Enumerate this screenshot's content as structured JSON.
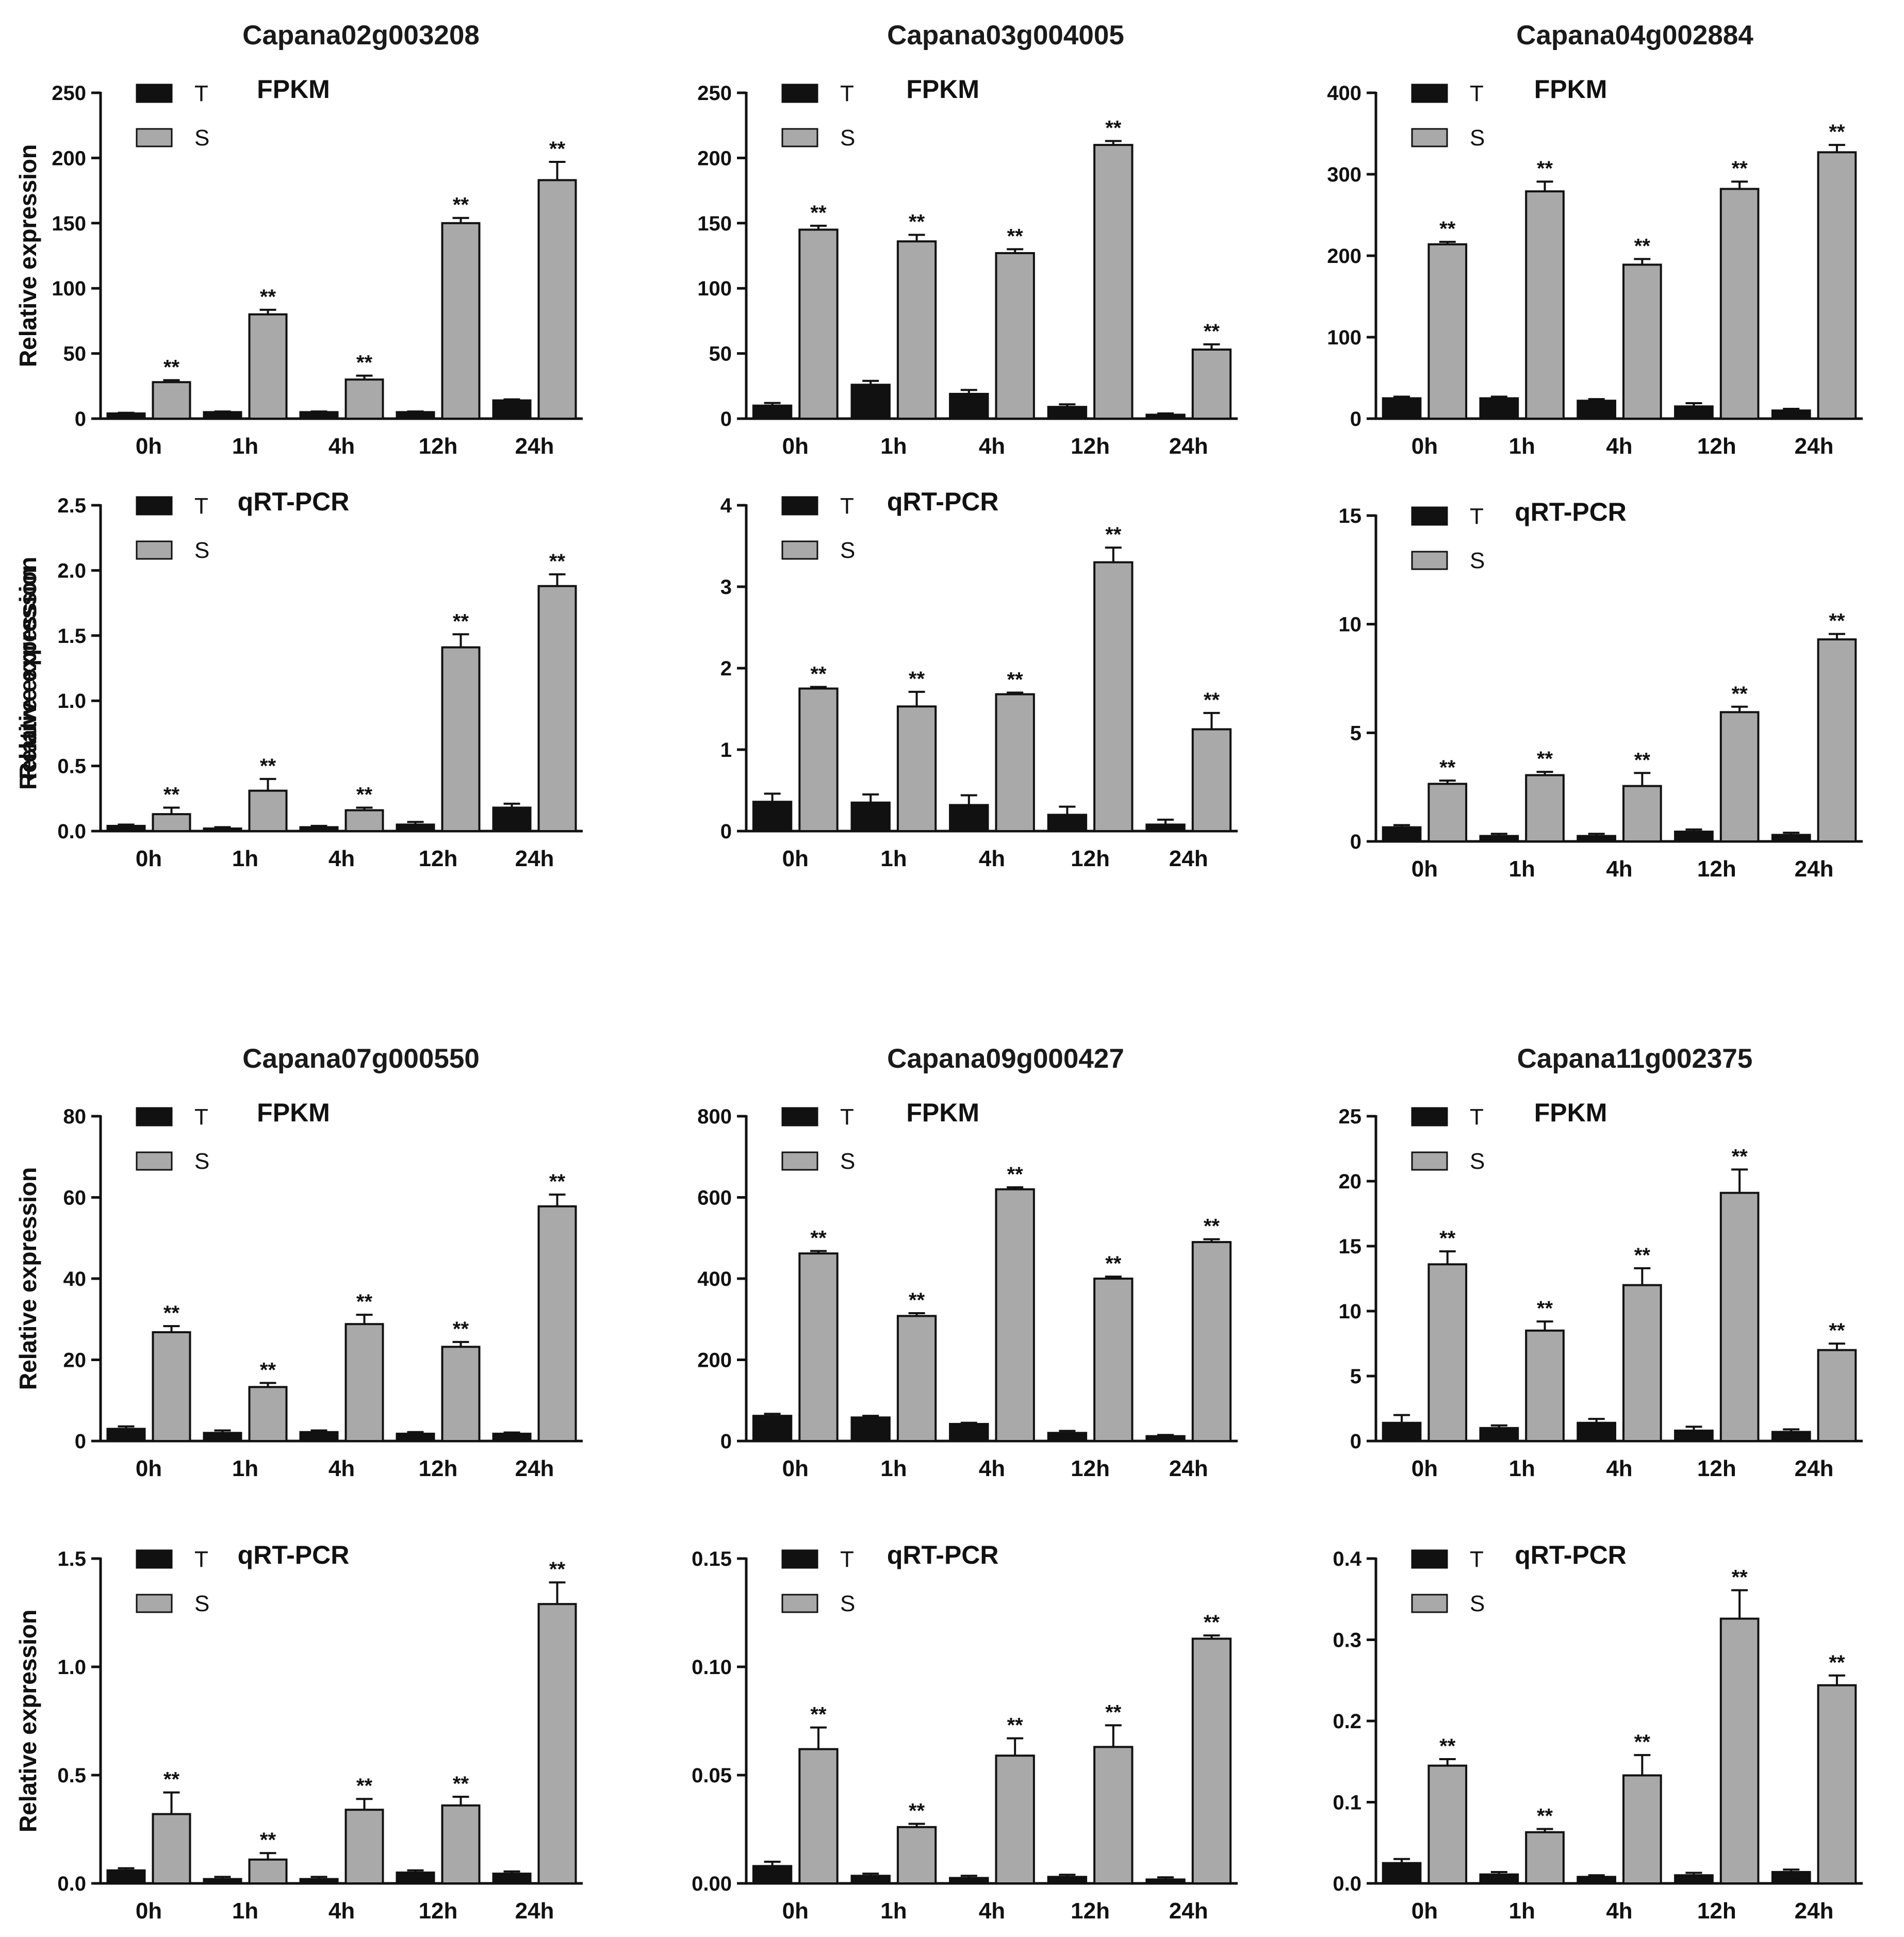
{
  "colors": {
    "T": "#111111",
    "S": "#a9a9a9",
    "axis": "#111111"
  },
  "legend": {
    "T": "T",
    "S": "S"
  },
  "genes": [
    "Capana02g003208",
    "Capana03g004005",
    "Capana04g002884",
    "Capana07g000550",
    "Capana09g000427",
    "Capana11g002375"
  ],
  "significance_marker": "**",
  "chart_data": [
    {
      "type": "bar",
      "gene": "Capana02g003208",
      "subtitle": "FPKM",
      "ylabel": "Relative expression",
      "categories": [
        "0h",
        "1h",
        "4h",
        "12h",
        "24h"
      ],
      "ylim": [
        0,
        250
      ],
      "yticks": [
        "0",
        "50",
        "100",
        "150",
        "200",
        "250"
      ],
      "series": [
        {
          "name": "T",
          "values": [
            4,
            5,
            5,
            5,
            14
          ],
          "errors": [
            0.5,
            0.5,
            0.5,
            0.5,
            0.8
          ]
        },
        {
          "name": "S",
          "values": [
            28,
            80,
            30,
            150,
            183
          ],
          "errors": [
            1.5,
            3.5,
            3,
            4,
            14
          ]
        }
      ],
      "significance": [
        "**",
        "**",
        "**",
        "**",
        "**"
      ]
    },
    {
      "type": "bar",
      "gene": "Capana03g004005",
      "subtitle": "FPKM",
      "ylabel": "Relative expression",
      "categories": [
        "0h",
        "1h",
        "4h",
        "12h",
        "24h"
      ],
      "ylim": [
        0,
        250
      ],
      "yticks": [
        "0",
        "50",
        "100",
        "150",
        "200",
        "250"
      ],
      "series": [
        {
          "name": "T",
          "values": [
            10,
            26,
            19,
            9,
            3
          ],
          "errors": [
            2,
            3,
            3,
            2,
            1
          ]
        },
        {
          "name": "S",
          "values": [
            145,
            136,
            127,
            210,
            53
          ],
          "errors": [
            3,
            5,
            3,
            3,
            4
          ]
        }
      ],
      "significance": [
        "**",
        "**",
        "**",
        "**",
        "**"
      ]
    },
    {
      "type": "bar",
      "gene": "Capana04g002884",
      "subtitle": "FPKM",
      "ylabel": "Relative expression",
      "categories": [
        "0h",
        "1h",
        "4h",
        "12h",
        "24h"
      ],
      "ylim": [
        0,
        400
      ],
      "yticks": [
        "0",
        "100",
        "200",
        "300",
        "400"
      ],
      "series": [
        {
          "name": "T",
          "values": [
            25,
            25,
            22,
            15,
            10
          ],
          "errors": [
            2,
            2,
            2,
            4,
            2
          ]
        },
        {
          "name": "S",
          "values": [
            214,
            279,
            189,
            282,
            327
          ],
          "errors": [
            3,
            12,
            7,
            9,
            9
          ]
        }
      ],
      "significance": [
        "**",
        "**",
        "**",
        "**",
        "**"
      ]
    },
    {
      "type": "bar",
      "gene": "Capana02g003208",
      "subtitle": "qRT-PCR",
      "ylabel": "Relative expression",
      "categories": [
        "0h",
        "1h",
        "4h",
        "12h",
        "24h"
      ],
      "ylim": [
        0,
        2.5
      ],
      "yticks": [
        "0.0",
        "0.5",
        "1.0",
        "1.5",
        "2.0",
        "2.5"
      ],
      "series": [
        {
          "name": "T",
          "values": [
            0.04,
            0.02,
            0.03,
            0.05,
            0.18
          ],
          "errors": [
            0.01,
            0.01,
            0.01,
            0.02,
            0.03
          ]
        },
        {
          "name": "S",
          "values": [
            0.13,
            0.31,
            0.16,
            1.41,
            1.88
          ],
          "errors": [
            0.05,
            0.09,
            0.02,
            0.1,
            0.09
          ]
        }
      ],
      "significance": [
        "**",
        "**",
        "**",
        "**",
        "**"
      ]
    },
    {
      "type": "bar",
      "gene": "Capana03g004005",
      "subtitle": "qRT-PCR",
      "ylabel": "Relative expression",
      "categories": [
        "0h",
        "1h",
        "4h",
        "12h",
        "24h"
      ],
      "ylim": [
        0,
        4
      ],
      "yticks": [
        "0",
        "1",
        "2",
        "3",
        "4"
      ],
      "series": [
        {
          "name": "T",
          "values": [
            0.36,
            0.35,
            0.32,
            0.2,
            0.08
          ],
          "errors": [
            0.1,
            0.1,
            0.12,
            0.1,
            0.06
          ]
        },
        {
          "name": "S",
          "values": [
            1.75,
            1.53,
            1.68,
            3.3,
            1.25
          ],
          "errors": [
            0.02,
            0.18,
            0.02,
            0.18,
            0.2
          ]
        }
      ],
      "significance": [
        "**",
        "**",
        "**",
        "**",
        "**"
      ]
    },
    {
      "type": "bar",
      "gene": "Capana04g002884",
      "subtitle": "qRT-PCR",
      "ylabel": "Relative expression",
      "categories": [
        "0h",
        "1h",
        "4h",
        "12h",
        "24h"
      ],
      "ylim": [
        0,
        15
      ],
      "yticks": [
        "0",
        "5",
        "10",
        "15"
      ],
      "series": [
        {
          "name": "T",
          "values": [
            0.65,
            0.25,
            0.25,
            0.45,
            0.3
          ],
          "errors": [
            0.1,
            0.1,
            0.1,
            0.1,
            0.1
          ]
        },
        {
          "name": "S",
          "values": [
            2.65,
            3.05,
            2.55,
            5.95,
            9.3
          ],
          "errors": [
            0.15,
            0.15,
            0.6,
            0.25,
            0.25
          ]
        }
      ],
      "significance": [
        "**",
        "**",
        "**",
        "**",
        "**"
      ]
    },
    {
      "type": "bar",
      "gene": "Capana07g000550",
      "subtitle": "FPKM",
      "ylabel": "Relative expression",
      "categories": [
        "0h",
        "1h",
        "4h",
        "12h",
        "24h"
      ],
      "ylim": [
        0,
        80
      ],
      "yticks": [
        "0",
        "20",
        "40",
        "60",
        "80"
      ],
      "series": [
        {
          "name": "T",
          "values": [
            3,
            2,
            2.2,
            1.8,
            1.8
          ],
          "errors": [
            0.6,
            0.6,
            0.4,
            0.4,
            0.3
          ]
        },
        {
          "name": "S",
          "values": [
            26.8,
            13.3,
            28.8,
            23.2,
            57.8
          ],
          "errors": [
            1.5,
            1,
            2.3,
            1.2,
            2.9
          ]
        }
      ],
      "significance": [
        "**",
        "**",
        "**",
        "**",
        "**"
      ]
    },
    {
      "type": "bar",
      "gene": "Capana09g000427",
      "subtitle": "FPKM",
      "ylabel": "Relative expression",
      "categories": [
        "0h",
        "1h",
        "4h",
        "12h",
        "24h"
      ],
      "ylim": [
        0,
        800
      ],
      "yticks": [
        "0",
        "200",
        "400",
        "600",
        "800"
      ],
      "series": [
        {
          "name": "T",
          "values": [
            62,
            58,
            42,
            20,
            12
          ],
          "errors": [
            5,
            4,
            3,
            5,
            3
          ]
        },
        {
          "name": "S",
          "values": [
            462,
            308,
            620,
            400,
            490
          ],
          "errors": [
            6,
            7,
            5,
            5,
            7
          ]
        }
      ],
      "significance": [
        "**",
        "**",
        "**",
        "**",
        "**"
      ]
    },
    {
      "type": "bar",
      "gene": "Capana11g002375",
      "subtitle": "FPKM",
      "ylabel": "Relative expression",
      "categories": [
        "0h",
        "1h",
        "4h",
        "12h",
        "24h"
      ],
      "ylim": [
        0,
        25
      ],
      "yticks": [
        "0",
        "5",
        "10",
        "15",
        "20",
        "25"
      ],
      "series": [
        {
          "name": "T",
          "values": [
            1.4,
            1.0,
            1.4,
            0.8,
            0.7
          ],
          "errors": [
            0.6,
            0.2,
            0.3,
            0.3,
            0.2
          ]
        },
        {
          "name": "S",
          "values": [
            13.6,
            8.5,
            12.0,
            19.1,
            7.0
          ],
          "errors": [
            1.0,
            0.7,
            1.3,
            1.8,
            0.5
          ]
        }
      ],
      "significance": [
        "**",
        "**",
        "**",
        "**",
        "**"
      ]
    },
    {
      "type": "bar",
      "gene": "Capana07g000550",
      "subtitle": "qRT-PCR",
      "ylabel": "Relative expression",
      "categories": [
        "0h",
        "1h",
        "4h",
        "12h",
        "24h"
      ],
      "ylim": [
        0,
        1.5
      ],
      "yticks": [
        "0.0",
        "0.5",
        "1.0",
        "1.5"
      ],
      "series": [
        {
          "name": "T",
          "values": [
            0.06,
            0.02,
            0.02,
            0.05,
            0.045
          ],
          "errors": [
            0.01,
            0.01,
            0.01,
            0.01,
            0.01
          ]
        },
        {
          "name": "S",
          "values": [
            0.32,
            0.11,
            0.34,
            0.36,
            1.29
          ],
          "errors": [
            0.1,
            0.03,
            0.05,
            0.04,
            0.1
          ]
        }
      ],
      "significance": [
        "**",
        "**",
        "**",
        "**",
        "**"
      ]
    },
    {
      "type": "bar",
      "gene": "Capana09g000427",
      "subtitle": "qRT-PCR",
      "ylabel": "Relative expression",
      "categories": [
        "0h",
        "1h",
        "4h",
        "12h",
        "24h"
      ],
      "ylim": [
        0,
        0.15
      ],
      "yticks": [
        "0.00",
        "0.05",
        "0.10",
        "0.15"
      ],
      "series": [
        {
          "name": "T",
          "values": [
            0.008,
            0.0035,
            0.0025,
            0.003,
            0.0018
          ],
          "errors": [
            0.002,
            0.001,
            0.001,
            0.001,
            0.001
          ]
        },
        {
          "name": "S",
          "values": [
            0.062,
            0.026,
            0.059,
            0.063,
            0.113
          ],
          "errors": [
            0.01,
            0.0015,
            0.008,
            0.01,
            0.0015
          ]
        }
      ],
      "significance": [
        "**",
        "**",
        "**",
        "**",
        "**"
      ]
    },
    {
      "type": "bar",
      "gene": "Capana11g002375",
      "subtitle": "qRT-PCR",
      "ylabel": "Relative expression",
      "categories": [
        "0h",
        "1h",
        "4h",
        "12h",
        "24h"
      ],
      "ylim": [
        0,
        0.4
      ],
      "yticks": [
        "0.0",
        "0.1",
        "0.2",
        "0.3",
        "0.4"
      ],
      "series": [
        {
          "name": "T",
          "values": [
            0.025,
            0.011,
            0.008,
            0.01,
            0.014
          ],
          "errors": [
            0.005,
            0.003,
            0.002,
            0.003,
            0.003
          ]
        },
        {
          "name": "S",
          "values": [
            0.145,
            0.063,
            0.133,
            0.326,
            0.244
          ],
          "errors": [
            0.008,
            0.004,
            0.025,
            0.035,
            0.012
          ]
        }
      ],
      "significance": [
        "**",
        "**",
        "**",
        "**",
        "**"
      ]
    }
  ]
}
